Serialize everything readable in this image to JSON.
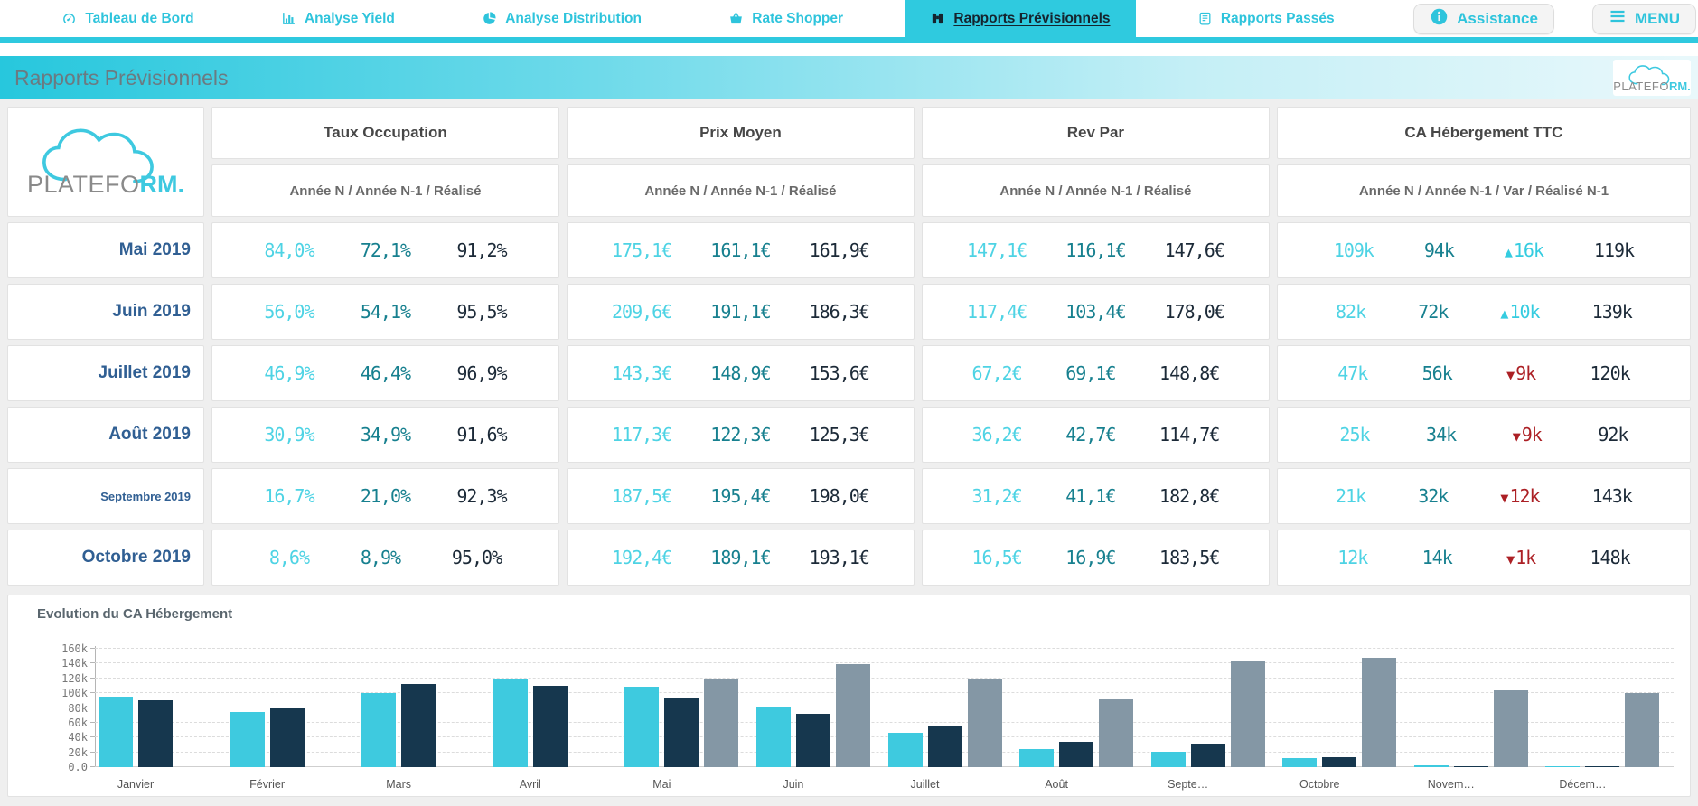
{
  "nav": {
    "items": [
      {
        "label": "Tableau de Bord",
        "icon": "gauge-icon",
        "active": false
      },
      {
        "label": "Analyse Yield",
        "icon": "bar-chart-icon",
        "active": false
      },
      {
        "label": "Analyse Distribution",
        "icon": "pie-chart-icon",
        "active": false
      },
      {
        "label": "Rate Shopper",
        "icon": "basket-icon",
        "active": false
      },
      {
        "label": "Rapports Prévisionnels",
        "icon": "binoculars-icon",
        "active": true
      },
      {
        "label": "Rapports Passés",
        "icon": "scroll-icon",
        "active": false
      }
    ],
    "assistance_label": "Assistance",
    "menu_label": "MENU"
  },
  "header": {
    "title": "Rapports Prévisionnels",
    "brand": {
      "first": "PLATEFO",
      "second": "RM."
    }
  },
  "colors": {
    "accent_cyan": "#2fc9df",
    "value_cyan": "#4ed3e4",
    "value_teal": "#17808f",
    "value_dark": "#1c2a38",
    "negative_red": "#ac2025",
    "bar_cyan": "#3ecadf",
    "bar_navy": "#16374e",
    "bar_gray": "#8497a5",
    "month_blue": "#305f93"
  },
  "table": {
    "columns": [
      {
        "title": "Taux Occupation",
        "subtitle": "Année N / Année N-1 / Réalisé"
      },
      {
        "title": "Prix Moyen",
        "subtitle": "Année N / Année N-1 / Réalisé"
      },
      {
        "title": "Rev Par",
        "subtitle": "Année N / Année N-1 / Réalisé"
      },
      {
        "title": "CA Hébergement TTC",
        "subtitle": "Année N / Année N-1 / Var / Réalisé N-1"
      }
    ],
    "rows": [
      {
        "month": "Mai 2019",
        "small": false,
        "taux": [
          "84,0%",
          "72,1%",
          "91,2%"
        ],
        "prix": [
          "175,1€",
          "161,1€",
          "161,9€"
        ],
        "revpar": [
          "147,1€",
          "116,1€",
          "147,6€"
        ],
        "ca": {
          "n": "109k",
          "n1": "94k",
          "var": "16k",
          "var_dir": "up",
          "realise": "119k"
        }
      },
      {
        "month": "Juin 2019",
        "small": false,
        "taux": [
          "56,0%",
          "54,1%",
          "95,5%"
        ],
        "prix": [
          "209,6€",
          "191,1€",
          "186,3€"
        ],
        "revpar": [
          "117,4€",
          "103,4€",
          "178,0€"
        ],
        "ca": {
          "n": "82k",
          "n1": "72k",
          "var": "10k",
          "var_dir": "up",
          "realise": "139k"
        }
      },
      {
        "month": "Juillet 2019",
        "small": false,
        "taux": [
          "46,9%",
          "46,4%",
          "96,9%"
        ],
        "prix": [
          "143,3€",
          "148,9€",
          "153,6€"
        ],
        "revpar": [
          "67,2€",
          "69,1€",
          "148,8€"
        ],
        "ca": {
          "n": "47k",
          "n1": "56k",
          "var": "9k",
          "var_dir": "down",
          "realise": "120k"
        }
      },
      {
        "month": "Août 2019",
        "small": false,
        "taux": [
          "30,9%",
          "34,9%",
          "91,6%"
        ],
        "prix": [
          "117,3€",
          "122,3€",
          "125,3€"
        ],
        "revpar": [
          "36,2€",
          "42,7€",
          "114,7€"
        ],
        "ca": {
          "n": "25k",
          "n1": "34k",
          "var": "9k",
          "var_dir": "down",
          "realise": "92k"
        }
      },
      {
        "month": "Septembre 2019",
        "small": true,
        "taux": [
          "16,7%",
          "21,0%",
          "92,3%"
        ],
        "prix": [
          "187,5€",
          "195,4€",
          "198,0€"
        ],
        "revpar": [
          "31,2€",
          "41,1€",
          "182,8€"
        ],
        "ca": {
          "n": "21k",
          "n1": "32k",
          "var": "12k",
          "var_dir": "down",
          "realise": "143k"
        }
      },
      {
        "month": "Octobre 2019",
        "small": false,
        "taux": [
          "8,6%",
          "8,9%",
          "95,0%"
        ],
        "prix": [
          "192,4€",
          "189,1€",
          "193,1€"
        ],
        "revpar": [
          "16,5€",
          "16,9€",
          "183,5€"
        ],
        "ca": {
          "n": "12k",
          "n1": "14k",
          "var": "1k",
          "var_dir": "down",
          "realise": "148k"
        }
      }
    ]
  },
  "chart_data": {
    "type": "bar",
    "title": "Evolution du CA Hébergement",
    "categories": [
      "Janvier",
      "Février",
      "Mars",
      "Avril",
      "Mai",
      "Juin",
      "Juillet",
      "Août",
      "Septe…",
      "Octobre",
      "Novem…",
      "Décem…"
    ],
    "series": [
      {
        "name": "Année N",
        "color": "#3ecadf",
        "values": [
          95,
          75,
          100,
          118,
          109,
          82,
          47,
          25,
          21,
          12,
          2,
          1
        ]
      },
      {
        "name": "Année N-1",
        "color": "#16374e",
        "values": [
          90,
          79,
          112,
          110,
          94,
          72,
          56,
          34,
          32,
          14,
          1,
          1
        ]
      },
      {
        "name": "Réalisé N-1",
        "color": "#8497a5",
        "values": [
          null,
          null,
          null,
          null,
          119,
          139,
          120,
          92,
          143,
          148,
          104,
          100
        ]
      }
    ],
    "unit": "k€",
    "ylabel": "",
    "xlabel": "",
    "ylim": [
      0,
      160
    ],
    "yticks": [
      "160k",
      "140k",
      "120k",
      "100k",
      "80k",
      "60k",
      "40k",
      "20k",
      "0.0"
    ],
    "grid": "horizontal-dashed",
    "legend": "none"
  }
}
